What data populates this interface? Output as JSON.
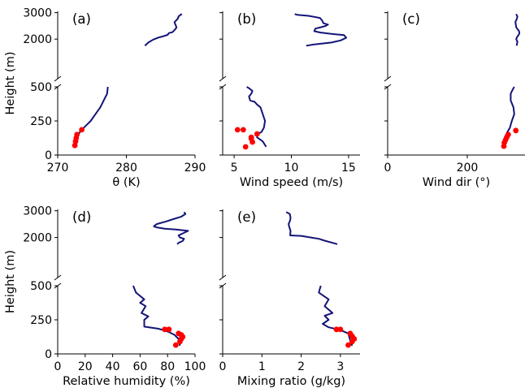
{
  "figure": {
    "colors": {
      "profile": "#141478",
      "points": "#ff0000",
      "axes": "#000000"
    }
  },
  "chart_data": [
    {
      "type": "line",
      "panel": "(a)",
      "xlabel": "θ (K)",
      "ylabel": "Height (m)",
      "xlim": [
        270,
        290
      ],
      "xticks": [
        270,
        280,
        290
      ],
      "ylim_lower": [
        0,
        500
      ],
      "ylim_upper": [
        500,
        3050
      ],
      "yticks_lower": [
        0,
        250,
        500
      ],
      "yticks_upper": [
        2000,
        3000
      ],
      "series": [
        {
          "kind": "line",
          "x": [
            272.4,
            272.7,
            273.3,
            274.0,
            274.8,
            275.5,
            276.2,
            276.7,
            277.2,
            277.3
          ],
          "y": [
            60,
            120,
            175,
            210,
            250,
            300,
            350,
            400,
            450,
            500
          ]
        },
        {
          "kind": "line",
          "x": [
            282.7,
            283.2,
            283.9,
            284.7,
            285.4,
            286.0,
            286.2,
            286.7,
            287.0,
            287.3,
            287.2,
            287.1,
            287.0,
            287.3,
            287.5,
            287.6,
            287.9,
            288.1
          ],
          "y": [
            1750,
            1870,
            1980,
            2060,
            2110,
            2160,
            2230,
            2260,
            2340,
            2440,
            2520,
            2570,
            2640,
            2720,
            2780,
            2860,
            2920,
            2950
          ]
        },
        {
          "kind": "points",
          "x": [
            272.5,
            272.6,
            272.7,
            272.8,
            273.5
          ],
          "y": [
            70,
            100,
            125,
            150,
            185
          ]
        }
      ]
    },
    {
      "type": "line",
      "panel": "(b)",
      "xlabel": "Wind speed (m/s)",
      "xlim": [
        4,
        16
      ],
      "xticks": [
        5,
        10,
        15
      ],
      "series": [
        {
          "kind": "line",
          "x": [
            7.8,
            7.5,
            7.0,
            7.0,
            7.4,
            7.6,
            7.7,
            7.5,
            7.3,
            7.0,
            6.8,
            6.4,
            6.3,
            6.5,
            6.6,
            6.3,
            6.1
          ],
          "y": [
            60,
            100,
            130,
            150,
            170,
            200,
            250,
            300,
            350,
            370,
            390,
            400,
            430,
            450,
            470,
            490,
            500
          ]
        },
        {
          "kind": "line",
          "x": [
            11.3,
            12.0,
            13.5,
            14.3,
            14.8,
            14.6,
            13.5,
            12.5,
            12.0,
            12.1,
            12.6,
            13.0,
            13.2,
            12.8,
            12.7,
            12.6,
            12.5,
            11.5,
            10.5,
            10.3
          ],
          "y": [
            1750,
            1800,
            1870,
            1950,
            2050,
            2150,
            2200,
            2250,
            2300,
            2400,
            2450,
            2500,
            2550,
            2600,
            2700,
            2750,
            2800,
            2880,
            2920,
            2950
          ]
        },
        {
          "kind": "points",
          "x": [
            5.3,
            5.8,
            6.5,
            7.0,
            6.5,
            6.6,
            6.0
          ],
          "y": [
            185,
            185,
            130,
            155,
            120,
            95,
            60
          ]
        }
      ]
    },
    {
      "type": "line",
      "panel": "(c)",
      "xlabel": "Wind dir (°)",
      "xlim": [
        0,
        345
      ],
      "xticks": [
        0,
        200
      ],
      "series": [
        {
          "kind": "line",
          "x": [
            290,
            292,
            296,
            302,
            307,
            312,
            318,
            316,
            309,
            309,
            314,
            318
          ],
          "y": [
            60,
            100,
            140,
            175,
            200,
            250,
            300,
            350,
            400,
            450,
            480,
            500
          ]
        },
        {
          "kind": "line",
          "x": [
            324,
            326,
            323,
            325,
            329,
            331,
            330,
            326,
            323,
            322,
            321,
            324,
            326,
            323
          ],
          "y": [
            1750,
            1900,
            2000,
            2080,
            2160,
            2220,
            2300,
            2380,
            2450,
            2550,
            2650,
            2750,
            2850,
            2950
          ]
        },
        {
          "kind": "points",
          "x": [
            292,
            293,
            296,
            299,
            303,
            322
          ],
          "y": [
            65,
            90,
            110,
            130,
            150,
            180
          ]
        }
      ]
    },
    {
      "type": "line",
      "panel": "(d)",
      "xlabel": "Relative humidity (%)",
      "ylabel": "Height (m)",
      "xlim": [
        0,
        100
      ],
      "xticks": [
        0,
        20,
        40,
        60,
        80,
        100
      ],
      "series": [
        {
          "kind": "line",
          "x": [
            89,
            88,
            85,
            81,
            77,
            73,
            63,
            63,
            66,
            61,
            64,
            60,
            63,
            57,
            55
          ],
          "y": [
            60,
            110,
            140,
            160,
            175,
            185,
            200,
            250,
            275,
            300,
            350,
            375,
            400,
            450,
            500
          ]
        },
        {
          "kind": "line",
          "x": [
            87,
            88,
            91,
            92,
            89,
            88,
            91,
            95,
            86,
            78,
            72,
            70,
            72,
            79,
            85,
            90,
            93,
            92
          ],
          "y": [
            1750,
            1800,
            1870,
            1950,
            2000,
            2080,
            2150,
            2250,
            2300,
            2330,
            2380,
            2420,
            2500,
            2600,
            2700,
            2780,
            2880,
            2950
          ]
        },
        {
          "kind": "points",
          "x": [
            86,
            89,
            90,
            91,
            90,
            88,
            78,
            81
          ],
          "y": [
            65,
            90,
            110,
            125,
            140,
            150,
            180,
            180
          ]
        }
      ]
    },
    {
      "type": "line",
      "panel": "(e)",
      "xlabel": "Mixing ratio (g/kg)",
      "xlim": [
        0,
        3.5
      ],
      "xticks": [
        0,
        1,
        2,
        3
      ],
      "series": [
        {
          "kind": "line",
          "x": [
            3.3,
            3.25,
            3.2,
            3.0,
            2.7,
            2.55,
            2.7,
            2.6,
            2.8,
            2.6,
            2.7,
            2.45,
            2.5
          ],
          "y": [
            60,
            100,
            150,
            175,
            195,
            220,
            250,
            280,
            300,
            350,
            400,
            450,
            500
          ]
        },
        {
          "kind": "line",
          "x": [
            2.92,
            2.85,
            2.6,
            2.45,
            2.25,
            2.0,
            1.72,
            1.73,
            1.7,
            1.68,
            1.72,
            1.73,
            1.71,
            1.62
          ],
          "y": [
            1750,
            1780,
            1880,
            1950,
            2000,
            2060,
            2080,
            2250,
            2380,
            2500,
            2650,
            2750,
            2880,
            2950
          ]
        },
        {
          "kind": "points",
          "x": [
            3.2,
            3.3,
            3.35,
            3.3,
            3.25,
            3.0,
            2.9
          ],
          "y": [
            65,
            90,
            110,
            130,
            150,
            180,
            180
          ]
        }
      ]
    }
  ]
}
